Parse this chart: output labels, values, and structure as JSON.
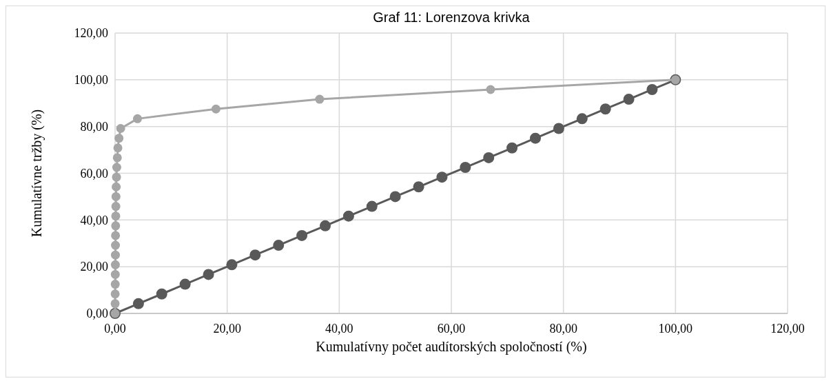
{
  "chart_data": {
    "type": "line",
    "title": "Graf 11: Lorenzova krivka",
    "xlabel": "Kumulatívny počet audítorských spoločností (%)",
    "ylabel": "Kumulatívne tržby (%)",
    "series": [
      {
        "color": "#a6a6a6",
        "x": [
          0,
          0.01,
          0.02,
          0.03,
          0.04,
          0.05,
          0.06,
          0.07,
          0.08,
          0.1,
          0.12,
          0.14,
          0.16,
          0.2,
          0.25,
          0.3,
          0.4,
          0.5,
          0.7,
          1.0,
          4,
          18,
          36.5,
          67,
          100
        ],
        "values": [
          0,
          4.17,
          8.33,
          12.5,
          16.67,
          20.83,
          25,
          29.17,
          33.33,
          37.5,
          41.67,
          45.83,
          50,
          54.17,
          58.33,
          62.5,
          66.67,
          70.83,
          75,
          79.17,
          83.33,
          87.5,
          91.67,
          95.83,
          100
        ]
      },
      {
        "color": "#595959",
        "x": [
          0,
          4.17,
          8.33,
          12.5,
          16.67,
          20.83,
          25,
          29.17,
          33.33,
          37.5,
          41.67,
          45.83,
          50,
          54.17,
          58.33,
          62.5,
          66.67,
          70.83,
          75,
          79.17,
          83.33,
          87.5,
          91.67,
          95.83,
          100
        ],
        "values": [
          0,
          4.17,
          8.33,
          12.5,
          16.67,
          20.83,
          25,
          29.17,
          33.33,
          37.5,
          41.67,
          45.83,
          50,
          54.17,
          58.33,
          62.5,
          66.67,
          70.83,
          75,
          79.17,
          83.33,
          87.5,
          91.67,
          95.83,
          100
        ]
      }
    ],
    "xlim": [
      0,
      120
    ],
    "ylim": [
      0,
      120
    ],
    "xticks": [
      {
        "value": 0,
        "label": "0,00"
      },
      {
        "value": 20,
        "label": "20,00"
      },
      {
        "value": 40,
        "label": "40,00"
      },
      {
        "value": 60,
        "label": "60,00"
      },
      {
        "value": 80,
        "label": "80,00"
      },
      {
        "value": 100,
        "label": "100,00"
      },
      {
        "value": 120,
        "label": "120,00"
      }
    ],
    "yticks": [
      {
        "value": 0,
        "label": "0,00"
      },
      {
        "value": 20,
        "label": "20,00"
      },
      {
        "value": 40,
        "label": "40,00"
      },
      {
        "value": 60,
        "label": "60,00"
      },
      {
        "value": 80,
        "label": "80,00"
      },
      {
        "value": 100,
        "label": "100,00"
      },
      {
        "value": 120,
        "label": "120,00"
      }
    ],
    "grid": true,
    "marker": "circle",
    "line_style": "solid"
  }
}
